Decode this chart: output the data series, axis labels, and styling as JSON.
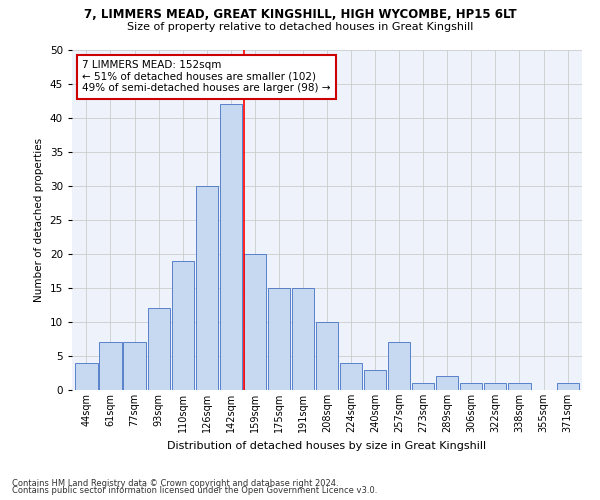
{
  "title": "7, LIMMERS MEAD, GREAT KINGSHILL, HIGH WYCOMBE, HP15 6LT",
  "subtitle": "Size of property relative to detached houses in Great Kingshill",
  "xlabel": "Distribution of detached houses by size in Great Kingshill",
  "ylabel": "Number of detached properties",
  "bar_labels": [
    "44sqm",
    "61sqm",
    "77sqm",
    "93sqm",
    "110sqm",
    "126sqm",
    "142sqm",
    "159sqm",
    "175sqm",
    "191sqm",
    "208sqm",
    "224sqm",
    "240sqm",
    "257sqm",
    "273sqm",
    "289sqm",
    "306sqm",
    "322sqm",
    "338sqm",
    "355sqm",
    "371sqm"
  ],
  "bar_values": [
    4,
    7,
    7,
    12,
    19,
    30,
    42,
    20,
    15,
    15,
    10,
    4,
    3,
    7,
    1,
    2,
    1,
    1,
    1,
    0,
    1
  ],
  "bar_color": "#c6d9f0",
  "bar_edge_color": "#4472c4",
  "red_line_index": 6.57,
  "annotation_text": "7 LIMMERS MEAD: 152sqm\n← 51% of detached houses are smaller (102)\n49% of semi-detached houses are larger (98) →",
  "annotation_box_color": "#ffffff",
  "annotation_box_edge": "#cc0000",
  "ylim": [
    0,
    50
  ],
  "yticks": [
    0,
    5,
    10,
    15,
    20,
    25,
    30,
    35,
    40,
    45,
    50
  ],
  "grid_color": "#cccccc",
  "bg_color": "#eef2fb",
  "footnote1": "Contains HM Land Registry data © Crown copyright and database right 2024.",
  "footnote2": "Contains public sector information licensed under the Open Government Licence v3.0."
}
